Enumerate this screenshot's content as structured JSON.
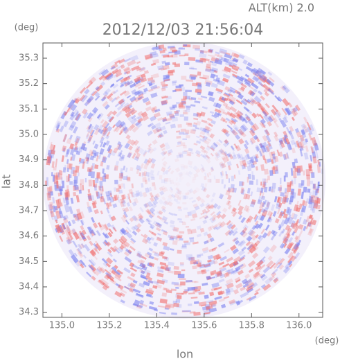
{
  "chart_data": {
    "type": "radar-image",
    "title": "2012/12/03 21:56:04",
    "subtitle": "ALT(km) 2.0",
    "x_label": "lon",
    "y_label": "lat",
    "x_unit": "(deg)",
    "y_unit": "(deg)",
    "xlim": [
      134.92,
      136.1
    ],
    "ylim": [
      34.28,
      35.36
    ],
    "xticks": [
      {
        "value": 135,
        "label": "135.0"
      },
      135.2,
      135.4,
      135.6,
      135.8,
      {
        "value": 136,
        "label": "136.0"
      }
    ],
    "yticks": [
      34.3,
      34.4,
      34.5,
      34.6,
      34.7,
      34.8,
      34.9,
      {
        "value": 35,
        "label": "35.0"
      },
      35.1,
      35.2,
      35.3
    ]
  }
}
